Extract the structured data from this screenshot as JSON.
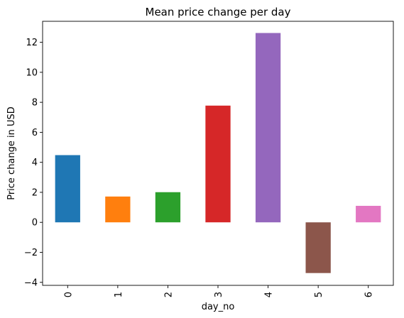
{
  "chart_data": {
    "type": "bar",
    "title": "Mean price change per day",
    "xlabel": "day_no",
    "ylabel": "Price change in USD",
    "categories": [
      "0",
      "1",
      "2",
      "3",
      "4",
      "5",
      "6"
    ],
    "values": [
      4.48,
      1.72,
      2.01,
      7.78,
      12.62,
      -3.38,
      1.1
    ],
    "colors": [
      "#1f77b4",
      "#ff7f0e",
      "#2ca02c",
      "#d62728",
      "#9467bd",
      "#8c564b",
      "#e377c2"
    ],
    "ylim": [
      -4.2,
      13.4
    ],
    "yticks": [
      -4,
      -2,
      0,
      2,
      4,
      6,
      8,
      10,
      12
    ],
    "ytick_labels": [
      "−4",
      "−2",
      "0",
      "2",
      "4",
      "6",
      "8",
      "10",
      "12"
    ],
    "grid": false,
    "legend": "none"
  }
}
